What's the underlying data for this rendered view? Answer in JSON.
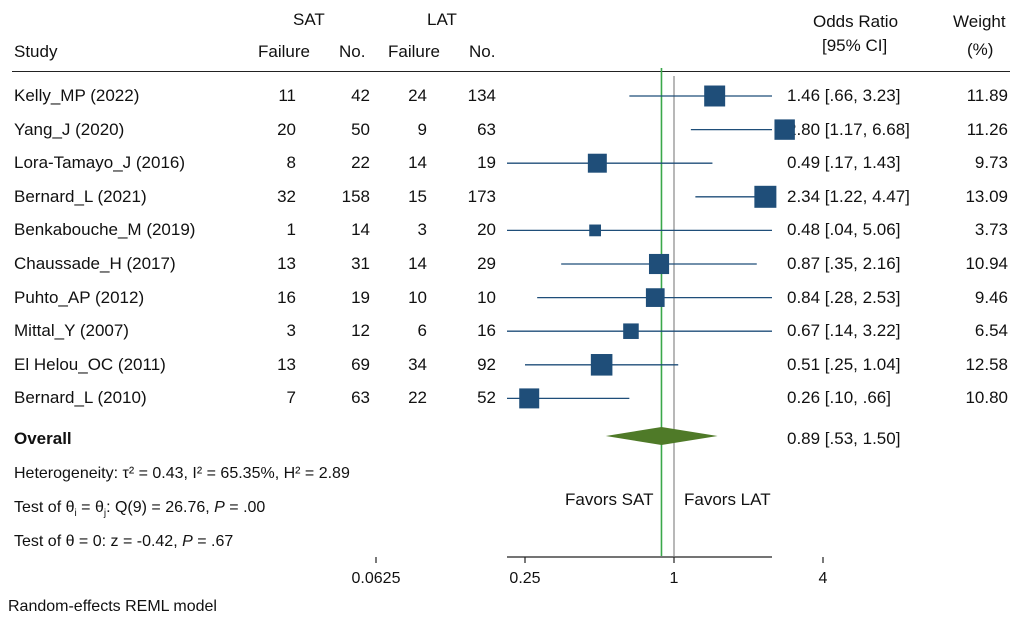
{
  "header": {
    "study": "Study",
    "sat": "SAT",
    "lat": "LAT",
    "failure": "Failure",
    "no": "No.",
    "or_line1": "Odds Ratio",
    "or_line2": "[95% CI]",
    "weight_line1": "Weight",
    "weight_line2": "(%)"
  },
  "overall": {
    "label": "Overall",
    "or_text": "0.89 [.53, 1.50]"
  },
  "heterogeneity": "Heterogeneity: τ² = 0.43, I² = 65.35%, H² = 2.89",
  "test_theta_prefix": "Test of θ",
  "test_theta_i": "i",
  "test_theta_eq": " = θ",
  "test_theta_j": "j",
  "test_theta_rest": ": Q(9) = 26.76, ",
  "test_theta_p": "P",
  "test_theta_pval": " = .00",
  "test_zero_text": "Test of θ = 0: z = -0.42, ",
  "test_zero_p": "P",
  "test_zero_pval": " = .67",
  "favors_left": "Favors SAT",
  "favors_right": "Favors LAT",
  "footer": "Random-effects REML model",
  "colors": {
    "study_marker": "#1f4e79",
    "ci_line": "#1f4e79",
    "overall_diamond": "#4f7a28",
    "overall_line": "#3aa84a",
    "null_line": "#999999"
  },
  "chart_data": {
    "type": "forest",
    "x_scale": "log2",
    "xlim": [
      0.0625,
      6
    ],
    "ticks": [
      0.0625,
      0.25,
      1,
      4
    ],
    "tick_labels": [
      "0.0625",
      "0.25",
      "1",
      "4"
    ],
    "overall": {
      "or": 0.89,
      "lo": 0.53,
      "hi": 1.5
    },
    "studies": [
      {
        "study": "Kelly_MP (2022)",
        "sat_failure": "11",
        "sat_no": "42",
        "lat_failure": "24",
        "lat_no": "134",
        "or": 1.46,
        "lo": 0.66,
        "hi": 3.23,
        "or_text": "1.46 [.66, 3.23]",
        "weight": "11.89"
      },
      {
        "study": "Yang_J (2020)",
        "sat_failure": "20",
        "sat_no": "50",
        "lat_failure": "9",
        "lat_no": "63",
        "or": 2.8,
        "lo": 1.17,
        "hi": 6.68,
        "or_text": "2.80 [1.17, 6.68]",
        "weight": "11.26"
      },
      {
        "study": "Lora-Tamayo_J (2016)",
        "sat_failure": "8",
        "sat_no": "22",
        "lat_failure": "14",
        "lat_no": "19",
        "or": 0.49,
        "lo": 0.17,
        "hi": 1.43,
        "or_text": "0.49 [.17, 1.43]",
        "weight": "9.73"
      },
      {
        "study": "Bernard_L (2021)",
        "sat_failure": "32",
        "sat_no": "158",
        "lat_failure": "15",
        "lat_no": "173",
        "or": 2.34,
        "lo": 1.22,
        "hi": 4.47,
        "or_text": "2.34 [1.22, 4.47]",
        "weight": "13.09"
      },
      {
        "study": "Benkabouche_M (2019)",
        "sat_failure": "1",
        "sat_no": "14",
        "lat_failure": "3",
        "lat_no": "20",
        "or": 0.48,
        "lo": 0.04,
        "hi": 5.06,
        "or_text": "0.48 [.04, 5.06]",
        "weight": "3.73"
      },
      {
        "study": "Chaussade_H (2017)",
        "sat_failure": "13",
        "sat_no": "31",
        "lat_failure": "14",
        "lat_no": "29",
        "or": 0.87,
        "lo": 0.35,
        "hi": 2.16,
        "or_text": "0.87 [.35, 2.16]",
        "weight": "10.94"
      },
      {
        "study": "Puhto_AP (2012)",
        "sat_failure": "16",
        "sat_no": "19",
        "lat_failure": "10",
        "lat_no": "10",
        "or": 0.84,
        "lo": 0.28,
        "hi": 2.53,
        "or_text": "0.84 [.28, 2.53]",
        "weight": "9.46"
      },
      {
        "study": "Mittal_Y (2007)",
        "sat_failure": "3",
        "sat_no": "12",
        "lat_failure": "6",
        "lat_no": "16",
        "or": 0.67,
        "lo": 0.14,
        "hi": 3.22,
        "or_text": "0.67 [.14, 3.22]",
        "weight": "6.54"
      },
      {
        "study": "El Helou_OC (2011)",
        "sat_failure": "13",
        "sat_no": "69",
        "lat_failure": "34",
        "lat_no": "92",
        "or": 0.51,
        "lo": 0.25,
        "hi": 1.04,
        "or_text": "0.51 [.25, 1.04]",
        "weight": "12.58"
      },
      {
        "study": "Bernard_L (2010)",
        "sat_failure": "7",
        "sat_no": "63",
        "lat_failure": "22",
        "lat_no": "52",
        "or": 0.26,
        "lo": 0.1,
        "hi": 0.66,
        "or_text": "0.26 [.10, .66]",
        "weight": "10.80"
      }
    ]
  }
}
